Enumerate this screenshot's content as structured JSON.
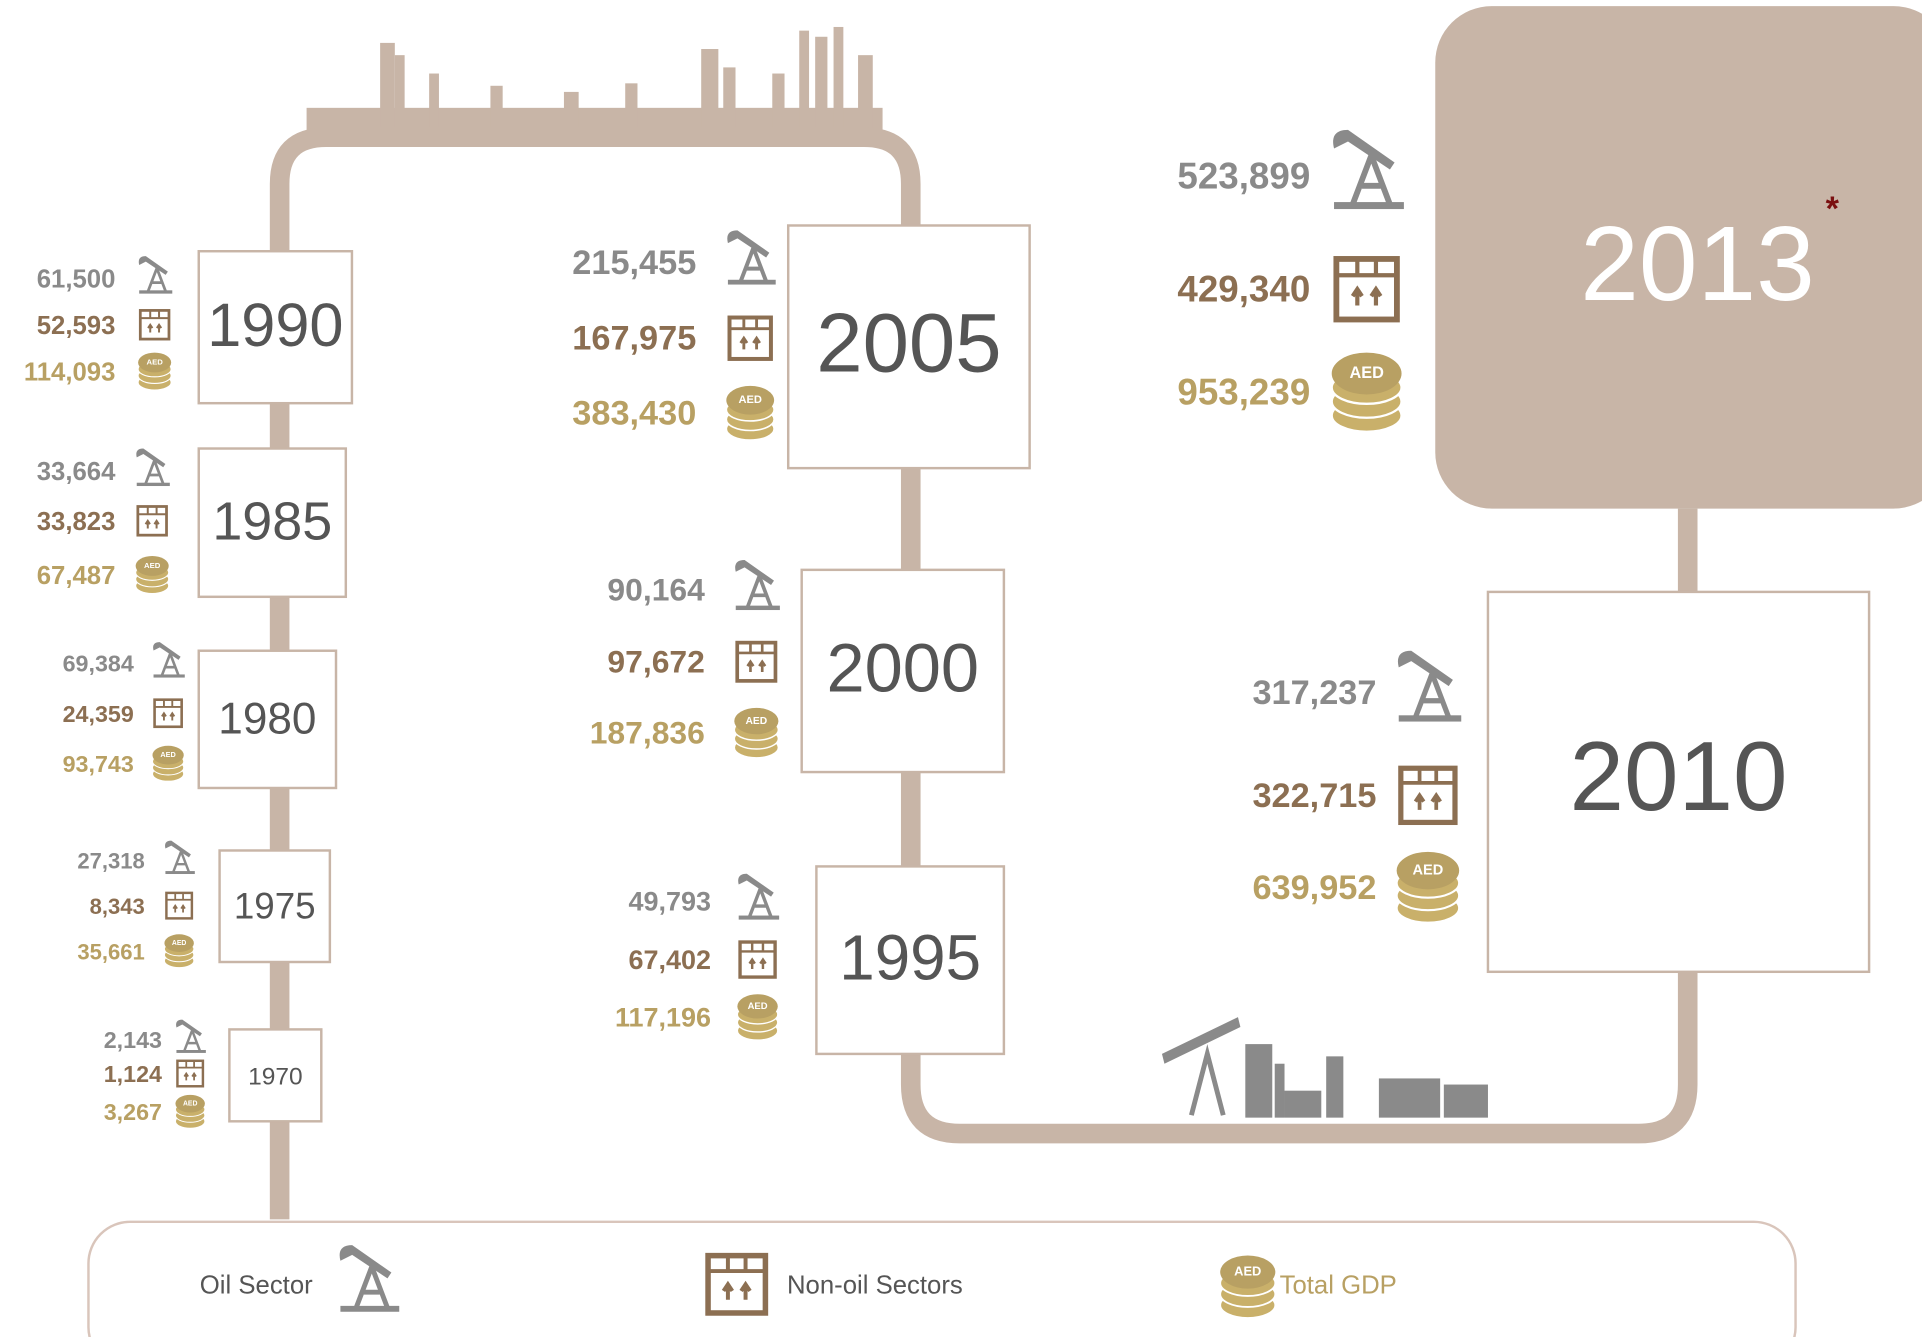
{
  "entries": [
    {
      "year": "1970",
      "oil": "2,143",
      "non_oil": "1,124",
      "total": "3,267"
    },
    {
      "year": "1975",
      "oil": "27,318",
      "non_oil": "8,343",
      "total": "35,661"
    },
    {
      "year": "1980",
      "oil": "69,384",
      "non_oil": "24,359",
      "total": "93,743"
    },
    {
      "year": "1985",
      "oil": "33,664",
      "non_oil": "33,823",
      "total": "67,487"
    },
    {
      "year": "1990",
      "oil": "61,500",
      "non_oil": "52,593",
      "total": "114,093"
    },
    {
      "year": "1995",
      "oil": "49,793",
      "non_oil": "67,402",
      "total": "117,196"
    },
    {
      "year": "2000",
      "oil": "90,164",
      "non_oil": "97,672",
      "total": "187,836"
    },
    {
      "year": "2005",
      "oil": "215,455",
      "non_oil": "167,975",
      "total": "383,430"
    },
    {
      "year": "2010",
      "oil": "317,237",
      "non_oil": "322,715",
      "total": "639,952"
    },
    {
      "year": "2013",
      "oil": "523,899",
      "non_oil": "429,340",
      "total": "953,239"
    }
  ],
  "asterisk": "*",
  "coin_label": "AED",
  "legend": {
    "oil": "Oil Sector",
    "non_oil": "Non-oil Sectors",
    "total": "Total GDP"
  }
}
